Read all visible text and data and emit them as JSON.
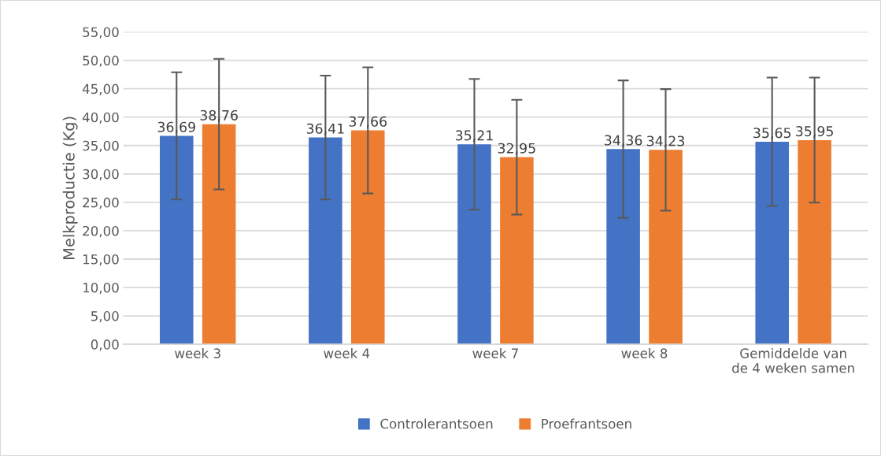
{
  "chart_data": {
    "type": "bar",
    "ylabel": "Melkproductie (Kg)",
    "categories": [
      "week 3",
      "week 4",
      "week 7",
      "week 8",
      "Gemiddelde van\nde 4 weken samen"
    ],
    "series": [
      {
        "name": "Controlerantsoen",
        "color": "#4472c4",
        "values": [
          36.69,
          36.41,
          35.21,
          34.36,
          35.65
        ],
        "value_labels": [
          "36,69",
          "36,41",
          "35,21",
          "34,36",
          "35,65"
        ],
        "errors": [
          11.2,
          10.9,
          11.5,
          12.1,
          11.3
        ]
      },
      {
        "name": "Proefrantsoen",
        "color": "#ed7d31",
        "values": [
          38.76,
          37.66,
          32.95,
          34.23,
          35.95
        ],
        "value_labels": [
          "38,76",
          "37,66",
          "32,95",
          "34,23",
          "35,95"
        ],
        "errors": [
          11.5,
          11.1,
          10.1,
          10.7,
          11.0
        ]
      }
    ],
    "ylim": [
      0,
      55
    ],
    "yticks": [
      {
        "value": 0,
        "label": "0,00"
      },
      {
        "value": 5,
        "label": "5,00"
      },
      {
        "value": 10,
        "label": "10,00"
      },
      {
        "value": 15,
        "label": "15,00"
      },
      {
        "value": 20,
        "label": "20,00"
      },
      {
        "value": 25,
        "label": "25,00"
      },
      {
        "value": 30,
        "label": "30,00"
      },
      {
        "value": 35,
        "label": "35,00"
      },
      {
        "value": 40,
        "label": "40,00"
      },
      {
        "value": 45,
        "label": "45,00"
      },
      {
        "value": 50,
        "label": "50,00"
      },
      {
        "value": 55,
        "label": "55,00"
      }
    ],
    "grid": "y",
    "legend": "bottom"
  }
}
